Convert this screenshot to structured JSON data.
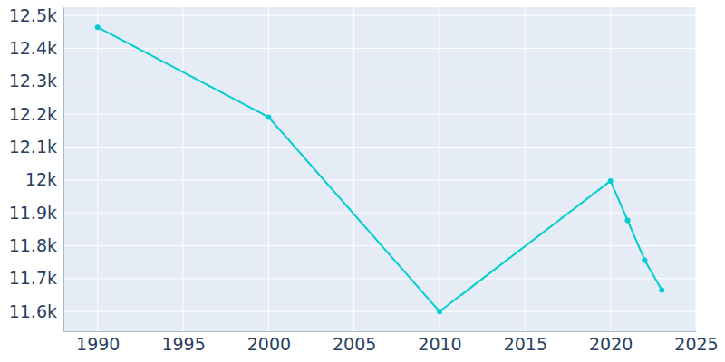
{
  "chart_data": {
    "type": "line",
    "x": [
      1990,
      2000,
      2010,
      2020,
      2021,
      2022,
      2023
    ],
    "values": [
      12464,
      12191,
      11600,
      11997,
      11877,
      11756,
      11665
    ],
    "color": "#00ced1",
    "marker": "circle",
    "xlim": [
      1988,
      2025
    ],
    "xticks": [
      1990,
      1995,
      2000,
      2005,
      2010,
      2015,
      2020,
      2025
    ],
    "ylim": [
      11540,
      12525
    ],
    "yticks": [
      {
        "value": 11600,
        "label": "11.6k"
      },
      {
        "value": 11700,
        "label": "11.7k"
      },
      {
        "value": 11800,
        "label": "11.8k"
      },
      {
        "value": 11900,
        "label": "11.9k"
      },
      {
        "value": 12000,
        "label": "12k"
      },
      {
        "value": 12100,
        "label": "12.1k"
      },
      {
        "value": 12200,
        "label": "12.2k"
      },
      {
        "value": 12300,
        "label": "12.3k"
      },
      {
        "value": 12400,
        "label": "12.4k"
      },
      {
        "value": 12500,
        "label": "12.5k"
      }
    ],
    "grid": true
  }
}
